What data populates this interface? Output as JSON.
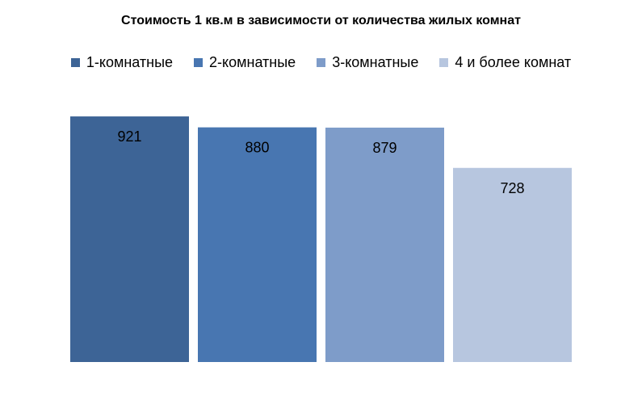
{
  "chart_data": {
    "type": "bar",
    "title": "Стоимость 1 кв.м в зависимости от количества жилых комнат",
    "xlabel": "",
    "ylabel": "",
    "ylim": [
      0,
      1000
    ],
    "grid": false,
    "legend_position": "top",
    "series": [
      {
        "name": "1-комнатные",
        "values": [
          921
        ],
        "color": "#3d6496"
      },
      {
        "name": "2-комнатные",
        "values": [
          880
        ],
        "color": "#4876b1"
      },
      {
        "name": "3-комнатные",
        "values": [
          879
        ],
        "color": "#7e9cc9"
      },
      {
        "name": "4 и более комнат",
        "values": [
          728
        ],
        "color": "#b7c6df"
      }
    ]
  }
}
